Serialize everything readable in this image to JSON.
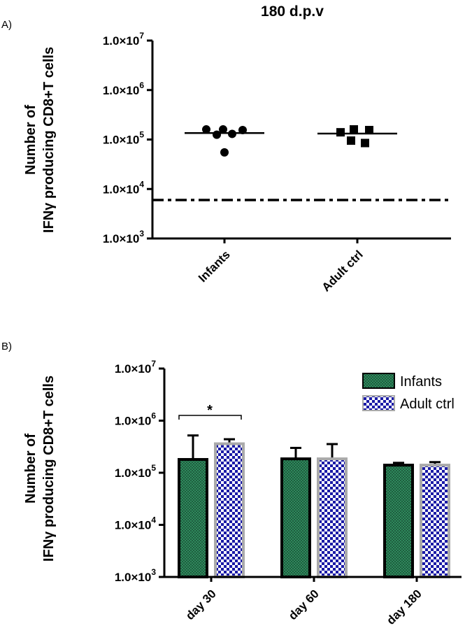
{
  "panel_a_label": "A)",
  "panel_b_label": "B)",
  "chart_data": [
    {
      "type": "scatter",
      "title": "180 d.p.v",
      "ylabel_line1": "Number of",
      "ylabel_line2": "IFNγ producing CD8+T cells",
      "yscale": "log",
      "ylim": [
        1000,
        10000000
      ],
      "yticks": [
        1000,
        10000,
        100000,
        1000000,
        10000000
      ],
      "ytick_labels": [
        {
          "base": "1.0×10",
          "exp": "3"
        },
        {
          "base": "1.0×10",
          "exp": "4"
        },
        {
          "base": "1.0×10",
          "exp": "5"
        },
        {
          "base": "1.0×10",
          "exp": "6"
        },
        {
          "base": "1.0×10",
          "exp": "7"
        }
      ],
      "categories": [
        "Infants",
        "Adult ctrl"
      ],
      "series": [
        {
          "name": "Infants",
          "marker": "circle",
          "values": [
            160000,
            160000,
            125000,
            130000,
            155000,
            55000
          ],
          "mean": 135000
        },
        {
          "name": "Adult ctrl",
          "marker": "square",
          "values": [
            140000,
            160000,
            155000,
            95000,
            85000
          ],
          "mean": 132000
        }
      ],
      "detection_limit": 6000
    },
    {
      "type": "bar",
      "ylabel_line1": "Number of",
      "ylabel_line2": "IFNγ producing CD8+T cells",
      "yscale": "log",
      "ylim": [
        1000,
        10000000
      ],
      "yticks": [
        1000,
        10000,
        100000,
        1000000,
        10000000
      ],
      "ytick_labels": [
        {
          "base": "1.0×10",
          "exp": "3"
        },
        {
          "base": "1.0×10",
          "exp": "4"
        },
        {
          "base": "1.0×10",
          "exp": "5"
        },
        {
          "base": "1.0×10",
          "exp": "6"
        },
        {
          "base": "1.0×10",
          "exp": "7"
        }
      ],
      "categories": [
        "day 30",
        "day 60",
        "day 180"
      ],
      "series": [
        {
          "name": "Infants",
          "color": "#1f5c3f",
          "values": [
            180000,
            185000,
            140000
          ],
          "error_upper": [
            520000,
            300000,
            155000
          ]
        },
        {
          "name": "Adult ctrl",
          "color": "#1a1aa6",
          "values": [
            360000,
            185000,
            140000
          ],
          "error_upper": [
            440000,
            355000,
            160000
          ]
        }
      ],
      "legend_position": "top-right",
      "significance": {
        "between": "day 30",
        "label": "*"
      }
    }
  ]
}
